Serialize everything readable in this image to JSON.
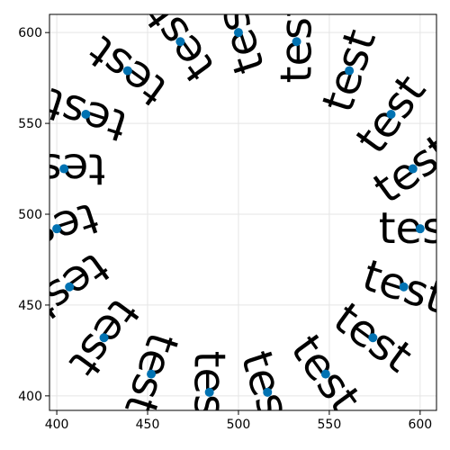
{
  "chart_data": {
    "type": "scatter",
    "title": "",
    "xlabel": "",
    "ylabel": "",
    "xlim": [
      396,
      609
    ],
    "ylim": [
      392,
      610
    ],
    "xticks": [
      400,
      450,
      500,
      550,
      600
    ],
    "yticks": [
      400,
      450,
      500,
      550,
      600
    ],
    "grid": true,
    "marker_color": "#0072b2",
    "series": [
      {
        "points": [
          {
            "x": 600,
            "y": 492,
            "label": "test",
            "rotation": 0
          },
          {
            "x": 591,
            "y": 460,
            "label": "test",
            "rotation": 18
          },
          {
            "x": 574,
            "y": 432,
            "label": "test",
            "rotation": 36
          },
          {
            "x": 548,
            "y": 412,
            "label": "test",
            "rotation": 54
          },
          {
            "x": 516,
            "y": 402,
            "label": "test",
            "rotation": 72
          },
          {
            "x": 484,
            "y": 402,
            "label": "test",
            "rotation": 90
          },
          {
            "x": 452,
            "y": 412,
            "label": "test",
            "rotation": 108
          },
          {
            "x": 426,
            "y": 432,
            "label": "test",
            "rotation": 126
          },
          {
            "x": 407,
            "y": 460,
            "label": "test",
            "rotation": 144
          },
          {
            "x": 400,
            "y": 492,
            "label": "test",
            "rotation": 162
          },
          {
            "x": 404,
            "y": 525,
            "label": "test",
            "rotation": 180
          },
          {
            "x": 416,
            "y": 555,
            "label": "test",
            "rotation": 198
          },
          {
            "x": 439,
            "y": 579,
            "label": "test",
            "rotation": 216
          },
          {
            "x": 468,
            "y": 595,
            "label": "test",
            "rotation": 234
          },
          {
            "x": 500,
            "y": 600,
            "label": "test",
            "rotation": 252
          },
          {
            "x": 532,
            "y": 595,
            "label": "test",
            "rotation": 270
          },
          {
            "x": 561,
            "y": 579,
            "label": "test",
            "rotation": 288
          },
          {
            "x": 584,
            "y": 555,
            "label": "test",
            "rotation": 306
          },
          {
            "x": 596,
            "y": 525,
            "label": "test",
            "rotation": 324
          }
        ]
      }
    ]
  }
}
